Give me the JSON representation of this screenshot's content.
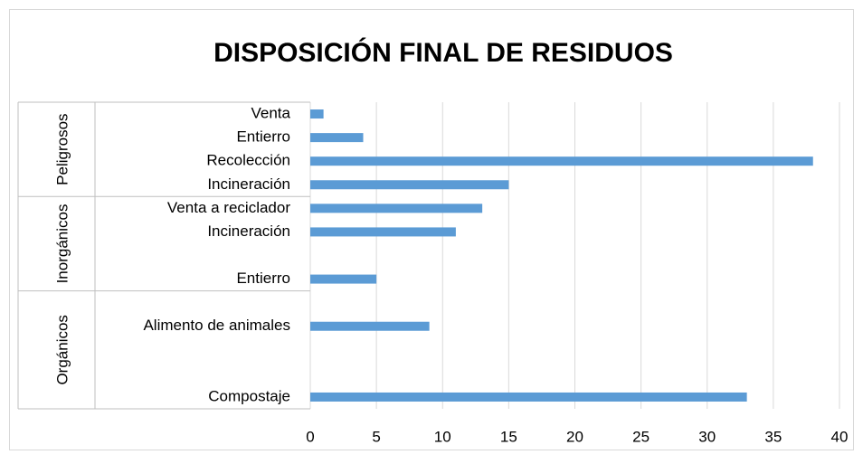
{
  "chart_data": {
    "type": "bar",
    "orientation": "horizontal",
    "title": "DISPOSICIÓN FINAL DE RESIDUOS",
    "color": "#5b9bd5",
    "groups": [
      {
        "name": "Peligrosos",
        "categories": [
          "Venta",
          "Entierro",
          "Recolección",
          "Incineración"
        ],
        "values": [
          1,
          4,
          38,
          15
        ]
      },
      {
        "name": "Inorgánicos",
        "categories": [
          "Venta a reciclador",
          "Incineración",
          null,
          "Entierro"
        ],
        "values": [
          13,
          11,
          null,
          5
        ]
      },
      {
        "name": "Orgánicos",
        "categories": [
          null,
          "Alimento de animales",
          null,
          null,
          "Compostaje"
        ],
        "values": [
          null,
          9,
          null,
          null,
          33
        ]
      }
    ],
    "xlim": [
      0,
      40
    ],
    "xticks": [
      0,
      5,
      10,
      15,
      20,
      25,
      30,
      35,
      40
    ],
    "grid": true
  }
}
